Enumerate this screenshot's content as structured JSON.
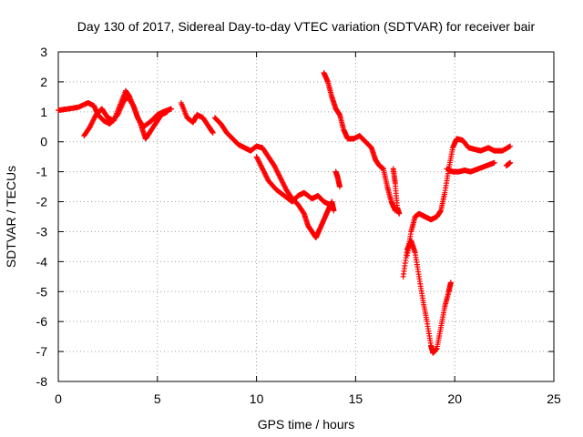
{
  "chart_data": {
    "type": "scatter",
    "title": "Day 130 of 2017, Sidereal Day-to-day VTEC variation (SDTVAR) for receiver bair",
    "xlabel": "GPS time / hours",
    "ylabel": "SDTVAR / TECUs",
    "xlim": [
      0,
      25
    ],
    "ylim": [
      -8,
      3
    ],
    "xticks": [
      0,
      5,
      10,
      15,
      20,
      25
    ],
    "xtick_labels": [
      "0",
      "5",
      "10",
      "15",
      "20",
      "25"
    ],
    "yticks": [
      3,
      2,
      1,
      0,
      -1,
      -2,
      -3,
      -4,
      -5,
      -6,
      -7,
      -8
    ],
    "ytick_labels": [
      "3",
      "2",
      "1",
      "0",
      "-1",
      "-2",
      "-3",
      "-4",
      "-5",
      "-6",
      "-7",
      "-8"
    ],
    "grid": true,
    "marker": "+",
    "series": [
      {
        "name": "SDTVAR",
        "color": "#ff0000",
        "segments": [
          [
            [
              0.0,
              1.05
            ],
            [
              0.5,
              1.1
            ],
            [
              1.0,
              1.15
            ],
            [
              1.5,
              1.3
            ],
            [
              1.8,
              1.2
            ],
            [
              2.0,
              0.9
            ],
            [
              2.3,
              0.7
            ],
            [
              2.6,
              0.6
            ],
            [
              3.0,
              0.9
            ],
            [
              3.3,
              1.35
            ],
            [
              3.5,
              1.5
            ],
            [
              3.8,
              1.2
            ],
            [
              4.0,
              0.8
            ],
            [
              4.3,
              0.5
            ],
            [
              4.7,
              0.7
            ],
            [
              5.0,
              0.9
            ],
            [
              5.3,
              1.0
            ],
            [
              5.7,
              1.1
            ]
          ],
          [
            [
              1.3,
              0.2
            ],
            [
              1.6,
              0.5
            ],
            [
              1.9,
              0.9
            ],
            [
              2.2,
              1.1
            ],
            [
              2.5,
              0.8
            ],
            [
              2.8,
              0.7
            ],
            [
              3.1,
              1.2
            ],
            [
              3.4,
              1.7
            ],
            [
              3.6,
              1.5
            ],
            [
              3.9,
              1.0
            ],
            [
              4.2,
              0.5
            ],
            [
              4.4,
              0.1
            ],
            [
              4.6,
              0.3
            ],
            [
              4.9,
              0.6
            ],
            [
              5.2,
              0.9
            ],
            [
              5.5,
              1.0
            ]
          ],
          [
            [
              6.2,
              1.3
            ],
            [
              6.5,
              0.8
            ],
            [
              6.8,
              0.65
            ],
            [
              7.0,
              0.9
            ],
            [
              7.3,
              0.8
            ],
            [
              7.6,
              0.5
            ],
            [
              7.8,
              0.3
            ]
          ],
          [
            [
              7.9,
              0.8
            ],
            [
              8.2,
              0.6
            ],
            [
              8.5,
              0.3
            ],
            [
              8.8,
              0.1
            ],
            [
              9.1,
              -0.1
            ],
            [
              9.4,
              -0.2
            ],
            [
              9.7,
              -0.3
            ],
            [
              10.0,
              -0.15
            ],
            [
              10.3,
              -0.2
            ],
            [
              10.6,
              -0.5
            ],
            [
              10.9,
              -0.8
            ],
            [
              11.2,
              -1.2
            ],
            [
              11.5,
              -1.6
            ],
            [
              11.8,
              -1.9
            ],
            [
              12.1,
              -2.1
            ],
            [
              12.4,
              -2.4
            ],
            [
              12.6,
              -2.8
            ],
            [
              12.8,
              -3.0
            ],
            [
              13.0,
              -3.2
            ],
            [
              13.2,
              -2.9
            ],
            [
              13.4,
              -2.6
            ],
            [
              13.6,
              -2.3
            ],
            [
              13.8,
              -2.0
            ],
            [
              13.9,
              -2.3
            ]
          ],
          [
            [
              10.0,
              -0.5
            ],
            [
              10.3,
              -0.9
            ],
            [
              10.6,
              -1.3
            ],
            [
              11.0,
              -1.6
            ],
            [
              11.4,
              -1.8
            ],
            [
              11.8,
              -2.0
            ],
            [
              12.1,
              -1.8
            ],
            [
              12.4,
              -1.7
            ],
            [
              12.8,
              -1.9
            ],
            [
              13.1,
              -1.8
            ],
            [
              13.4,
              -2.0
            ],
            [
              13.7,
              -2.1
            ]
          ],
          [
            [
              14.0,
              -1.0
            ],
            [
              14.1,
              -1.2
            ],
            [
              14.2,
              -1.5
            ]
          ],
          [
            [
              13.4,
              2.3
            ],
            [
              13.6,
              2.0
            ],
            [
              13.8,
              1.5
            ],
            [
              14.0,
              1.1
            ],
            [
              14.2,
              0.9
            ],
            [
              14.4,
              0.4
            ],
            [
              14.6,
              0.1
            ],
            [
              14.9,
              0.1
            ],
            [
              15.2,
              0.2
            ],
            [
              15.5,
              0.0
            ],
            [
              15.8,
              -0.2
            ],
            [
              16.0,
              -0.6
            ],
            [
              16.2,
              -0.8
            ],
            [
              16.4,
              -0.9
            ],
            [
              16.6,
              -1.5
            ],
            [
              16.8,
              -2.0
            ],
            [
              17.0,
              -2.3
            ]
          ],
          [
            [
              16.9,
              -0.9
            ],
            [
              17.0,
              -1.4
            ],
            [
              17.1,
              -2.2
            ],
            [
              17.2,
              -2.4
            ]
          ],
          [
            [
              17.4,
              -4.5
            ],
            [
              17.6,
              -3.6
            ],
            [
              17.8,
              -3.3
            ],
            [
              18.0,
              -3.7
            ],
            [
              18.2,
              -4.5
            ],
            [
              18.4,
              -5.3
            ],
            [
              18.6,
              -6.0
            ],
            [
              18.8,
              -6.8
            ],
            [
              18.9,
              -7.05
            ],
            [
              19.1,
              -6.9
            ],
            [
              19.3,
              -6.2
            ],
            [
              19.5,
              -5.5
            ],
            [
              19.7,
              -5.0
            ],
            [
              19.8,
              -4.7
            ]
          ],
          [
            [
              17.6,
              -3.8
            ],
            [
              17.8,
              -3.0
            ],
            [
              18.0,
              -2.5
            ],
            [
              18.2,
              -2.4
            ],
            [
              18.5,
              -2.5
            ],
            [
              18.8,
              -2.6
            ],
            [
              19.1,
              -2.5
            ],
            [
              19.3,
              -2.3
            ],
            [
              19.5,
              -1.7
            ],
            [
              19.7,
              -0.9
            ],
            [
              19.9,
              -0.2
            ],
            [
              20.1,
              0.1
            ],
            [
              20.4,
              0.05
            ],
            [
              20.7,
              -0.2
            ],
            [
              21.0,
              -0.25
            ],
            [
              21.3,
              -0.3
            ],
            [
              21.7,
              -0.2
            ],
            [
              22.0,
              -0.3
            ],
            [
              22.4,
              -0.3
            ],
            [
              22.8,
              -0.15
            ]
          ],
          [
            [
              19.6,
              -0.9
            ],
            [
              19.9,
              -1.0
            ],
            [
              20.2,
              -1.0
            ],
            [
              20.5,
              -0.95
            ],
            [
              20.8,
              -1.0
            ],
            [
              21.2,
              -0.9
            ],
            [
              21.6,
              -0.8
            ],
            [
              22.0,
              -0.7
            ]
          ],
          [
            [
              22.6,
              -0.8
            ],
            [
              22.8,
              -0.7
            ]
          ]
        ]
      }
    ]
  }
}
